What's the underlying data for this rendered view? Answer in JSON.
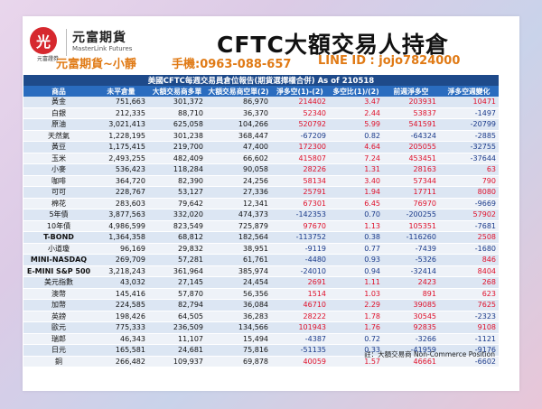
{
  "logo": {
    "mark": "光",
    "sub": "元富證券",
    "name": "元富期貨",
    "en": "MasterLink Futures"
  },
  "title": "CFTC大額交易人持倉",
  "contact": {
    "name": "元富期貨~小靜",
    "phone": "手機:0963-088-657",
    "line": "LINE ID : jojo7824000"
  },
  "report_title": "美國CFTC每週交易員倉位報告(期貨選擇權合併) As of  210518",
  "columns": [
    "商品",
    "未平倉量",
    "大額交易商多單",
    "大額交易商空單(2)",
    "淨多空(1)-(2)",
    "多空比(1)/(2)",
    "前週淨多空",
    "淨多空週變化"
  ],
  "rows": [
    {
      "name": "黃金",
      "oi": "751,663",
      "long": "301,372",
      "short": "86,970",
      "net": "214402",
      "ratio": "3.47",
      "prev": "203931",
      "chg": "10471"
    },
    {
      "name": "白銀",
      "oi": "212,335",
      "long": "88,710",
      "short": "36,370",
      "net": "52340",
      "ratio": "2.44",
      "prev": "53837",
      "chg": "-1497"
    },
    {
      "name": "原油",
      "oi": "3,021,413",
      "long": "625,058",
      "short": "104,266",
      "net": "520792",
      "ratio": "5.99",
      "prev": "541591",
      "chg": "-20799"
    },
    {
      "name": "天然氣",
      "oi": "1,228,195",
      "long": "301,238",
      "short": "368,447",
      "net": "-67209",
      "ratio": "0.82",
      "prev": "-64324",
      "chg": "-2885"
    },
    {
      "name": "黃豆",
      "oi": "1,175,415",
      "long": "219,700",
      "short": "47,400",
      "net": "172300",
      "ratio": "4.64",
      "prev": "205055",
      "chg": "-32755"
    },
    {
      "name": "玉米",
      "oi": "2,493,255",
      "long": "482,409",
      "short": "66,602",
      "net": "415807",
      "ratio": "7.24",
      "prev": "453451",
      "chg": "-37644"
    },
    {
      "name": "小麥",
      "oi": "536,423",
      "long": "118,284",
      "short": "90,058",
      "net": "28226",
      "ratio": "1.31",
      "prev": "28163",
      "chg": "63"
    },
    {
      "name": "咖啡",
      "oi": "364,720",
      "long": "82,390",
      "short": "24,256",
      "net": "58134",
      "ratio": "3.40",
      "prev": "57344",
      "chg": "790"
    },
    {
      "name": "可可",
      "oi": "228,767",
      "long": "53,127",
      "short": "27,336",
      "net": "25791",
      "ratio": "1.94",
      "prev": "17711",
      "chg": "8080"
    },
    {
      "name": "棉花",
      "oi": "283,603",
      "long": "79,642",
      "short": "12,341",
      "net": "67301",
      "ratio": "6.45",
      "prev": "76970",
      "chg": "-9669"
    },
    {
      "name": "5年債",
      "oi": "3,877,563",
      "long": "332,020",
      "short": "474,373",
      "net": "-142353",
      "ratio": "0.70",
      "prev": "-200255",
      "chg": "57902"
    },
    {
      "name": "10年債",
      "oi": "4,986,599",
      "long": "823,549",
      "short": "725,879",
      "net": "97670",
      "ratio": "1.13",
      "prev": "105351",
      "chg": "-7681"
    },
    {
      "name": "T-BOND",
      "oi": "1,364,358",
      "long": "68,812",
      "short": "182,564",
      "net": "-113752",
      "ratio": "0.38",
      "prev": "-116260",
      "chg": "2508"
    },
    {
      "name": "小道瓊",
      "oi": "96,169",
      "long": "29,832",
      "short": "38,951",
      "net": "-9119",
      "ratio": "0.77",
      "prev": "-7439",
      "chg": "-1680"
    },
    {
      "name": "MINI-NASDAQ",
      "oi": "269,709",
      "long": "57,281",
      "short": "61,761",
      "net": "-4480",
      "ratio": "0.93",
      "prev": "-5326",
      "chg": "846"
    },
    {
      "name": "E-MINI S&P 500",
      "oi": "3,218,243",
      "long": "361,964",
      "short": "385,974",
      "net": "-24010",
      "ratio": "0.94",
      "prev": "-32414",
      "chg": "8404"
    },
    {
      "name": "美元指數",
      "oi": "43,032",
      "long": "27,145",
      "short": "24,454",
      "net": "2691",
      "ratio": "1.11",
      "prev": "2423",
      "chg": "268"
    },
    {
      "name": "澳幣",
      "oi": "145,416",
      "long": "57,870",
      "short": "56,356",
      "net": "1514",
      "ratio": "1.03",
      "prev": "891",
      "chg": "623"
    },
    {
      "name": "加幣",
      "oi": "224,585",
      "long": "82,794",
      "short": "36,084",
      "net": "46710",
      "ratio": "2.29",
      "prev": "39085",
      "chg": "7625"
    },
    {
      "name": "英鎊",
      "oi": "198,426",
      "long": "64,505",
      "short": "36,283",
      "net": "28222",
      "ratio": "1.78",
      "prev": "30545",
      "chg": "-2323"
    },
    {
      "name": "歐元",
      "oi": "775,333",
      "long": "236,509",
      "short": "134,566",
      "net": "101943",
      "ratio": "1.76",
      "prev": "92835",
      "chg": "9108"
    },
    {
      "name": "瑞郎",
      "oi": "46,343",
      "long": "11,107",
      "short": "15,494",
      "net": "-4387",
      "ratio": "0.72",
      "prev": "-3266",
      "chg": "-1121"
    },
    {
      "name": "日元",
      "oi": "165,581",
      "long": "24,681",
      "short": "75,816",
      "net": "-51135",
      "ratio": "0.33",
      "prev": "-41959",
      "chg": "-9176"
    },
    {
      "name": "銅",
      "oi": "266,482",
      "long": "109,937",
      "short": "69,878",
      "net": "40059",
      "ratio": "1.57",
      "prev": "46661",
      "chg": "-6602"
    }
  ],
  "note": "註：大額交易商 Non-Commerce Position",
  "colors": {
    "positive": "#e0102a",
    "negative": "#1a3a8a",
    "header": "#2a6cbf",
    "contact": "#e07a15"
  }
}
